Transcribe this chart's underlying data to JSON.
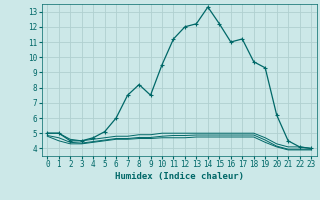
{
  "xlabel": "Humidex (Indice chaleur)",
  "bg_color": "#cce8e8",
  "grid_color": "#b0d0d0",
  "line_color": "#006868",
  "xlim": [
    -0.5,
    23.5
  ],
  "ylim": [
    3.5,
    13.5
  ],
  "xticks": [
    0,
    1,
    2,
    3,
    4,
    5,
    6,
    7,
    8,
    9,
    10,
    11,
    12,
    13,
    14,
    15,
    16,
    17,
    18,
    19,
    20,
    21,
    22,
    23
  ],
  "yticks": [
    4,
    5,
    6,
    7,
    8,
    9,
    10,
    11,
    12,
    13
  ],
  "series1_x": [
    0,
    1,
    2,
    3,
    4,
    5,
    6,
    7,
    8,
    9,
    10,
    11,
    12,
    13,
    14,
    15,
    16,
    17,
    18,
    19,
    20,
    21,
    22,
    23
  ],
  "series1_y": [
    5.0,
    5.0,
    4.5,
    4.5,
    4.7,
    5.1,
    6.0,
    7.5,
    8.2,
    7.5,
    9.5,
    11.2,
    12.0,
    12.2,
    13.3,
    12.2,
    11.0,
    11.2,
    9.7,
    9.3,
    6.2,
    4.5,
    4.1,
    4.0
  ],
  "series2_x": [
    0,
    1,
    2,
    3,
    4,
    5,
    6,
    7,
    8,
    9,
    10,
    11,
    12,
    13,
    14,
    15,
    16,
    17,
    18,
    19,
    20,
    21,
    22,
    23
  ],
  "series2_y": [
    4.8,
    4.5,
    4.3,
    4.3,
    4.4,
    4.5,
    4.6,
    4.6,
    4.65,
    4.65,
    4.7,
    4.7,
    4.7,
    4.75,
    4.75,
    4.75,
    4.75,
    4.75,
    4.75,
    4.4,
    4.1,
    3.9,
    3.9,
    3.9
  ],
  "series3_x": [
    0,
    1,
    2,
    3,
    4,
    5,
    6,
    7,
    8,
    9,
    10,
    11,
    12,
    13,
    14,
    15,
    16,
    17,
    18,
    19,
    20,
    21,
    22,
    23
  ],
  "series3_y": [
    4.85,
    4.7,
    4.4,
    4.35,
    4.45,
    4.55,
    4.65,
    4.65,
    4.72,
    4.72,
    4.8,
    4.85,
    4.85,
    4.88,
    4.88,
    4.88,
    4.88,
    4.88,
    4.88,
    4.55,
    4.15,
    3.95,
    3.95,
    3.95
  ],
  "series4_x": [
    0,
    1,
    2,
    3,
    4,
    5,
    6,
    7,
    8,
    9,
    10,
    11,
    12,
    13,
    14,
    15,
    16,
    17,
    18,
    19,
    20,
    21,
    22,
    23
  ],
  "series4_y": [
    5.0,
    5.0,
    4.6,
    4.5,
    4.6,
    4.7,
    4.8,
    4.8,
    4.9,
    4.9,
    5.0,
    5.0,
    5.0,
    5.0,
    5.0,
    5.0,
    5.0,
    5.0,
    5.0,
    4.7,
    4.3,
    4.1,
    4.1,
    4.0
  ],
  "tick_fontsize": 5.5,
  "xlabel_fontsize": 6.5
}
